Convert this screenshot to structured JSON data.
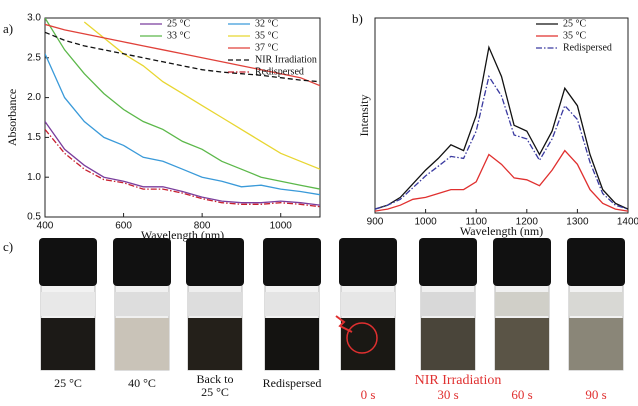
{
  "chart_data": [
    {
      "type": "line",
      "panel_label": "a)",
      "x_label": "Wavelength (nm)",
      "y_label": "Absorbance",
      "x": [
        400,
        450,
        500,
        550,
        600,
        650,
        700,
        750,
        800,
        850,
        900,
        950,
        1000,
        1050,
        1100
      ],
      "xlim": [
        400,
        1100
      ],
      "ylim": [
        0.5,
        3.0
      ],
      "xticks": [
        400,
        600,
        800,
        1000
      ],
      "yticks": [
        0.5,
        {
          "value": 1,
          "label": "1.0"
        },
        1.5,
        {
          "value": 2,
          "label": "2.0"
        },
        2.5,
        {
          "value": 3,
          "label": "3.0"
        }
      ],
      "legend": "upper right",
      "series": [
        {
          "name": "25 °C",
          "color": "#7a3e9d",
          "style": "solid",
          "values": [
            1.7,
            1.35,
            1.15,
            1.0,
            0.95,
            0.88,
            0.88,
            0.82,
            0.75,
            0.7,
            0.68,
            0.68,
            0.7,
            0.68,
            0.65
          ]
        },
        {
          "name": "32 °C",
          "color": "#3a9ad9",
          "style": "solid",
          "values": [
            2.55,
            2.0,
            1.7,
            1.5,
            1.4,
            1.25,
            1.2,
            1.1,
            1.0,
            0.95,
            0.88,
            0.9,
            0.85,
            0.82,
            0.78
          ]
        },
        {
          "name": "33 °C",
          "color": "#5cb84a",
          "style": "solid",
          "values": [
            3.0,
            2.6,
            2.3,
            2.05,
            1.85,
            1.7,
            1.6,
            1.45,
            1.35,
            1.2,
            1.1,
            1.0,
            0.95,
            0.9,
            0.85
          ]
        },
        {
          "name": "35 °C",
          "color": "#e8d631",
          "style": "solid",
          "values": [
            null,
            null,
            2.95,
            2.75,
            2.55,
            2.4,
            2.2,
            2.05,
            1.9,
            1.75,
            1.6,
            1.45,
            1.3,
            1.2,
            1.1
          ]
        },
        {
          "name": "37 °C",
          "color": "#e0413a",
          "style": "solid",
          "values": [
            2.92,
            2.85,
            2.8,
            2.75,
            2.7,
            2.65,
            2.6,
            2.55,
            2.5,
            2.45,
            2.4,
            2.35,
            2.3,
            2.25,
            2.15
          ]
        },
        {
          "name": "NIR Irradiation",
          "color": "#111111",
          "style": "dashed",
          "values": [
            2.82,
            2.72,
            2.65,
            2.6,
            2.55,
            2.5,
            2.45,
            2.4,
            2.35,
            2.32,
            2.3,
            2.28,
            2.25,
            2.22,
            2.2
          ]
        },
        {
          "name": "Redispersed",
          "color": "#c8202f",
          "style": "dashdot",
          "values": [
            1.6,
            1.3,
            1.1,
            0.97,
            0.93,
            0.85,
            0.85,
            0.8,
            0.73,
            0.68,
            0.66,
            0.66,
            0.68,
            0.66,
            0.63
          ]
        }
      ]
    },
    {
      "type": "line",
      "panel_label": "b)",
      "x_label": "Wavelength (nm)",
      "y_label": "Intensity",
      "x": [
        900,
        925,
        950,
        975,
        1000,
        1025,
        1050,
        1075,
        1100,
        1125,
        1150,
        1175,
        1200,
        1225,
        1250,
        1275,
        1300,
        1325,
        1350,
        1375,
        1400
      ],
      "xlim": [
        900,
        1400
      ],
      "ylim": [
        0,
        1
      ],
      "xticks": [
        900,
        1000,
        1100,
        1200,
        1300,
        1400
      ],
      "legend": "upper right",
      "series": [
        {
          "name": "25 °C",
          "color": "#111111",
          "style": "solid",
          "values": [
            0.02,
            0.04,
            0.08,
            0.15,
            0.22,
            0.28,
            0.35,
            0.32,
            0.5,
            0.85,
            0.7,
            0.45,
            0.42,
            0.3,
            0.42,
            0.64,
            0.55,
            0.3,
            0.12,
            0.05,
            0.02
          ]
        },
        {
          "name": "35 °C",
          "color": "#e0302f",
          "style": "solid",
          "values": [
            0.01,
            0.02,
            0.04,
            0.07,
            0.08,
            0.1,
            0.12,
            0.12,
            0.16,
            0.3,
            0.25,
            0.18,
            0.17,
            0.14,
            0.22,
            0.32,
            0.25,
            0.12,
            0.05,
            0.02,
            0.01
          ]
        },
        {
          "name": "Redispersed",
          "color": "#3a3aa0",
          "style": "dashdot",
          "values": [
            0.02,
            0.04,
            0.07,
            0.13,
            0.19,
            0.24,
            0.29,
            0.28,
            0.42,
            0.7,
            0.6,
            0.4,
            0.38,
            0.27,
            0.38,
            0.55,
            0.48,
            0.26,
            0.1,
            0.04,
            0.02
          ]
        }
      ]
    }
  ],
  "photos": {
    "panel_label": "c)",
    "captions": [
      "25 °C",
      "40 °C",
      "Back to 25 °C",
      "Redispersed"
    ],
    "group_label": "NIR Irradiation",
    "times": [
      "0 s",
      "30 s",
      "60 s",
      "90 s"
    ]
  }
}
